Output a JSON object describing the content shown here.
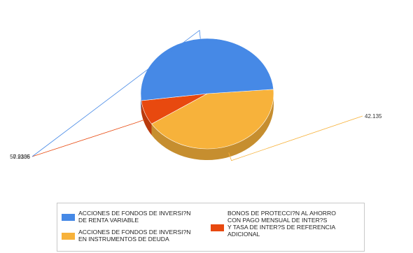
{
  "chart_data": {
    "type": "pie",
    "title": "",
    "slices": [
      {
        "label": "ACCIONES DE FONDOS DE INVERSI?N EN INSTRUMENTOS DE DEUDA",
        "value": 42.135,
        "value_label": "42.135",
        "color": "#f7b23b"
      },
      {
        "label": "BONOS DE PROTECCI?N AL AHORRO CON PAGO MENSUAL DE INTER?S Y TASA DE INTER?S DE REFERENCIA ADICIONAL",
        "value": 7.2336,
        "value_label": "7.2336",
        "color": "#e8490f"
      },
      {
        "label": "ACCIONES DE FONDOS DE INVERSI?N DE RENTA VARIABLE",
        "value": 50.9105,
        "value_label": "50.9105",
        "color": "#4689e6"
      }
    ],
    "legend_position": "bottom"
  },
  "legend": {
    "items": [
      {
        "text": "ACCIONES DE FONDOS DE INVERSI?N\nDE RENTA VARIABLE",
        "color": "#4689e6"
      },
      {
        "text": "ACCIONES DE FONDOS DE INVERSI?N\nEN INSTRUMENTOS DE DEUDA",
        "color": "#f7b23b"
      },
      {
        "text": "BONOS DE PROTECCI?N AL AHORRO\nCON PAGO MENSUAL DE INTER?S\nY TASA DE INTER?S DE REFERENCIA\nADICIONAL",
        "color": "#e8490f"
      }
    ]
  }
}
